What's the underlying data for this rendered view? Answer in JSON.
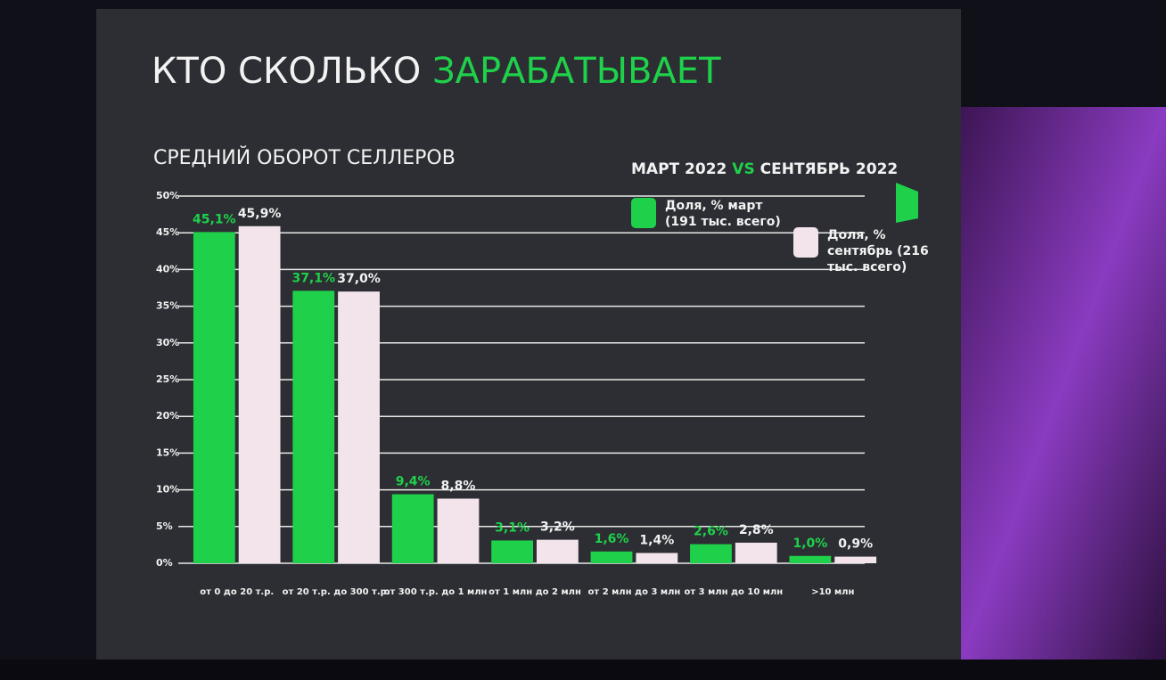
{
  "chart_data": {
    "type": "bar",
    "title": "КТО СКОЛЬКО",
    "title_highlight": "ЗАРАБАТЫВАЕТ",
    "subtitle": "СРЕДНИЙ ОБОРОТ СЕЛЛЕРОВ",
    "period_start": "МАРТ 2022",
    "period_vs": "VS",
    "period_end": "СЕНТЯБРЬ 2022",
    "categories": [
      "от 0 до 20 т.р.",
      "от 20 т.р. до 300 т.р.",
      "от 300 т.р. до 1 млн",
      "от 1 млн до 2 млн",
      "от 2 млн до 3 млн",
      "от 3 млн до 10 млн",
      ">10 млн"
    ],
    "series": [
      {
        "name": "Доля, % март (191 тыс. всего)",
        "color": "#1fd14a",
        "values": [
          45.1,
          37.1,
          9.4,
          3.1,
          1.6,
          2.6,
          1.0
        ],
        "value_labels": [
          "45,1%",
          "37,1%",
          "9,4%",
          "3,1%",
          "1,6%",
          "2,6%",
          "1,0%"
        ]
      },
      {
        "name": "Доля, % сентябрь (216 тыс. всего)",
        "color": "#f2e4ea",
        "values": [
          45.9,
          37.0,
          8.8,
          3.2,
          1.4,
          2.8,
          0.9
        ],
        "value_labels": [
          "45,9%",
          "37,0%",
          "8,8%",
          "3,2%",
          "1,4%",
          "2,8%",
          "0,9%"
        ]
      }
    ],
    "ylim": [
      0,
      50
    ],
    "yticks": [
      {
        "value": 0,
        "label": "0%"
      },
      {
        "value": 5,
        "label": "5%"
      },
      {
        "value": 10,
        "label": "10%"
      },
      {
        "value": 15,
        "label": "15%"
      },
      {
        "value": 20,
        "label": "20%"
      },
      {
        "value": 25,
        "label": "25%"
      },
      {
        "value": 30,
        "label": "30%"
      },
      {
        "value": 35,
        "label": "35%"
      },
      {
        "value": 40,
        "label": "40%"
      },
      {
        "value": 45,
        "label": "45%"
      },
      {
        "value": 50,
        "label": "50%"
      }
    ],
    "grid": true
  }
}
